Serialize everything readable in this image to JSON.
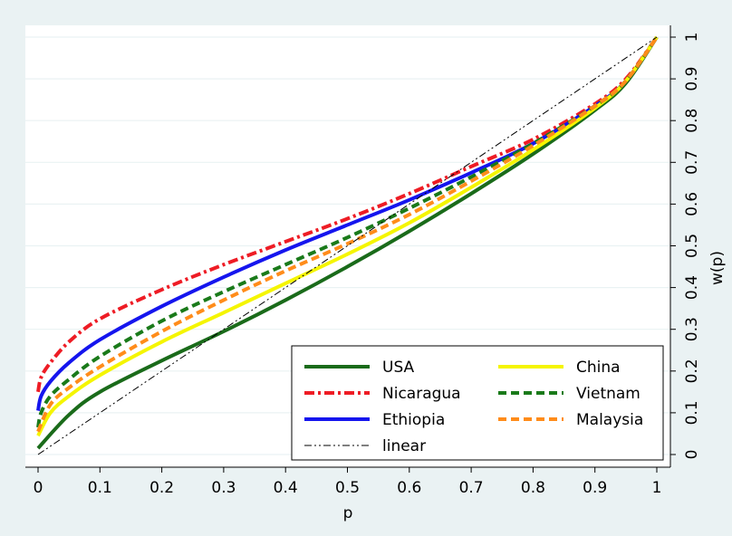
{
  "chart_data": {
    "type": "line",
    "xlabel": "p",
    "ylabel": "w(p)",
    "xlim": [
      0,
      1
    ],
    "ylim": [
      0,
      1
    ],
    "x_ticks": [
      "0",
      "0.1",
      "0.2",
      "0.3",
      "0.4",
      "0.5",
      "0.6",
      "0.7",
      "0.8",
      "0.9",
      "1"
    ],
    "y_ticks": [
      "0",
      "0.1",
      "0.2",
      "0.3",
      "0.4",
      "0.5",
      "0.6",
      "0.7",
      "0.8",
      "0.9",
      "1"
    ],
    "grid": "horizontal",
    "y_axis_side": "right",
    "legend_position": "bottom-right",
    "series": [
      {
        "name": "USA",
        "color": "#1a6b1a",
        "style": "solid",
        "x": [
          0,
          0.05,
          0.1,
          0.2,
          0.3,
          0.4,
          0.5,
          0.6,
          0.7,
          0.8,
          0.9,
          0.95,
          1
        ],
        "y": [
          0.015,
          0.095,
          0.15,
          0.225,
          0.295,
          0.37,
          0.45,
          0.535,
          0.625,
          0.72,
          0.825,
          0.89,
          1
        ]
      },
      {
        "name": "Nicaragua",
        "color": "#ee1c25",
        "style": "dash-dot",
        "x": [
          0,
          0.005,
          0.02,
          0.05,
          0.1,
          0.2,
          0.3,
          0.4,
          0.5,
          0.6,
          0.7,
          0.8,
          0.9,
          0.95,
          1
        ],
        "y": [
          0.15,
          0.185,
          0.22,
          0.27,
          0.325,
          0.395,
          0.455,
          0.51,
          0.565,
          0.625,
          0.69,
          0.755,
          0.84,
          0.9,
          1
        ]
      },
      {
        "name": "Ethiopia",
        "color": "#1515ee",
        "style": "solid",
        "x": [
          0,
          0.005,
          0.02,
          0.05,
          0.1,
          0.2,
          0.3,
          0.4,
          0.5,
          0.6,
          0.7,
          0.8,
          0.9,
          0.95,
          1
        ],
        "y": [
          0.105,
          0.14,
          0.175,
          0.22,
          0.275,
          0.355,
          0.425,
          0.49,
          0.55,
          0.61,
          0.675,
          0.745,
          0.835,
          0.895,
          1
        ]
      },
      {
        "name": "China",
        "color": "#f5f500",
        "style": "solid",
        "x": [
          0,
          0.02,
          0.05,
          0.1,
          0.2,
          0.3,
          0.4,
          0.5,
          0.6,
          0.7,
          0.8,
          0.9,
          0.95,
          1
        ],
        "y": [
          0.045,
          0.1,
          0.14,
          0.19,
          0.27,
          0.34,
          0.41,
          0.48,
          0.555,
          0.64,
          0.73,
          0.83,
          0.895,
          1
        ]
      },
      {
        "name": "Vietnam",
        "color": "#1a7a1a",
        "style": "dashed",
        "x": [
          0,
          0.005,
          0.02,
          0.05,
          0.1,
          0.2,
          0.3,
          0.4,
          0.5,
          0.6,
          0.7,
          0.8,
          0.9,
          0.95,
          1
        ],
        "y": [
          0.065,
          0.1,
          0.14,
          0.18,
          0.235,
          0.32,
          0.39,
          0.455,
          0.52,
          0.59,
          0.665,
          0.745,
          0.835,
          0.895,
          1
        ]
      },
      {
        "name": "Malaysia",
        "color": "#ff8c1a",
        "style": "dashed",
        "x": [
          0,
          0.02,
          0.05,
          0.1,
          0.2,
          0.3,
          0.4,
          0.5,
          0.6,
          0.7,
          0.8,
          0.9,
          0.95,
          1
        ],
        "y": [
          0.055,
          0.12,
          0.16,
          0.21,
          0.295,
          0.37,
          0.44,
          0.505,
          0.575,
          0.655,
          0.74,
          0.835,
          0.895,
          1
        ]
      },
      {
        "name": "linear",
        "color": "#000000",
        "style": "dash-dot-dot",
        "x": [
          0,
          1
        ],
        "y": [
          0,
          1
        ]
      }
    ]
  }
}
